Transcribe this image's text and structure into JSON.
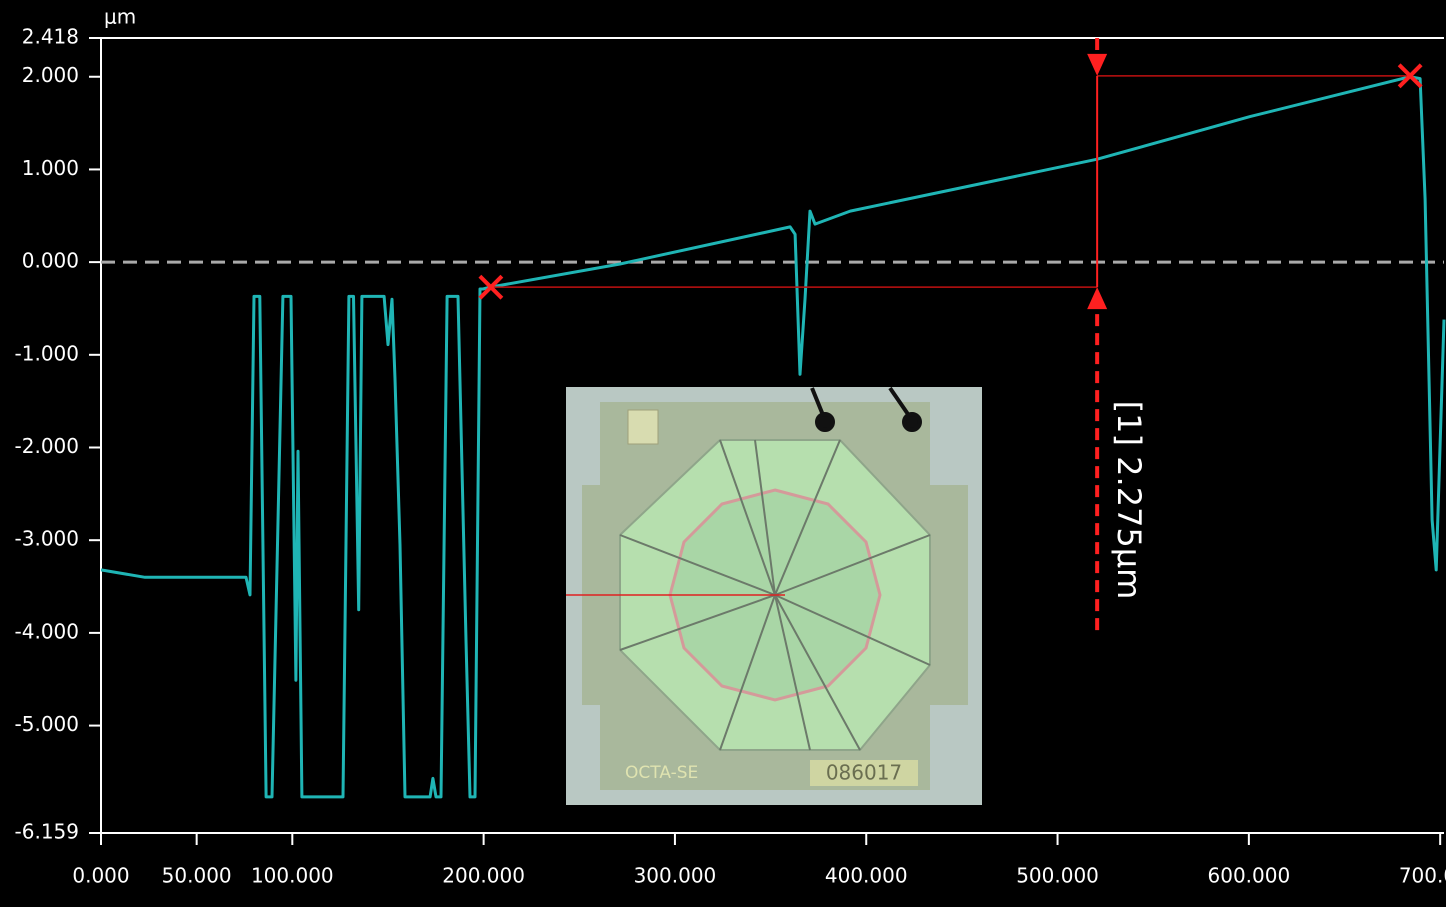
{
  "chart_data": {
    "type": "line",
    "y_label": "μm",
    "xlim": [
      0,
      702
    ],
    "ylim": [
      -6.159,
      2.418
    ],
    "xticks": [
      {
        "value": 0,
        "label": "0.000"
      },
      {
        "value": 50,
        "label": "50.000"
      },
      {
        "value": 100,
        "label": "100.000"
      },
      {
        "value": 200,
        "label": "200.000"
      },
      {
        "value": 300,
        "label": "300.000"
      },
      {
        "value": 400,
        "label": "400.000"
      },
      {
        "value": 500,
        "label": "500.000"
      },
      {
        "value": 600,
        "label": "600.000"
      },
      {
        "value": 700,
        "label": "700.000"
      }
    ],
    "yticks": [
      {
        "value": 2.418,
        "label": "2.418"
      },
      {
        "value": 2,
        "label": "2.000"
      },
      {
        "value": 1,
        "label": "1.000"
      },
      {
        "value": 0,
        "label": "0.000"
      },
      {
        "value": -1,
        "label": "-1.000"
      },
      {
        "value": -2,
        "label": "-2.000"
      },
      {
        "value": -3,
        "label": "-3.000"
      },
      {
        "value": -4,
        "label": "-4.000"
      },
      {
        "value": -5,
        "label": "-5.000"
      },
      {
        "value": -6.159,
        "label": "-6.159"
      }
    ],
    "zero_line": true,
    "x": [
      0,
      23,
      75.8,
      77.9,
      80,
      83,
      86.3,
      89.4,
      95.1,
      99.3,
      101.9,
      103,
      105,
      126.5,
      129.6,
      132,
      134.7,
      136.4,
      140.6,
      148,
      150,
      152.1,
      153.7,
      156.3,
      158.9,
      172,
      173.5,
      175.1,
      177.7,
      180.9,
      186.6,
      190.8,
      192.9,
      195.5,
      198.1,
      199.7,
      203.3,
      271.3,
      360.2,
      362.8,
      365.4,
      368,
      370.6,
      373.2,
      391.6,
      520.7,
      600.6,
      684.3,
      689.5,
      692.1,
      695.8,
      697.9,
      702
    ],
    "series": [
      {
        "color": "#1fb5b5",
        "values": [
          -3.32,
          -3.4,
          -3.4,
          -3.59,
          -0.37,
          -0.37,
          -5.77,
          -5.77,
          -0.37,
          -0.37,
          -4.51,
          -2.04,
          -5.77,
          -5.77,
          -0.37,
          -0.37,
          -3.75,
          -0.37,
          -0.37,
          -0.37,
          -0.89,
          -0.4,
          -1.26,
          -3.05,
          -5.77,
          -5.77,
          -5.57,
          -5.77,
          -5.77,
          -0.37,
          -0.37,
          -4.08,
          -5.77,
          -5.77,
          -0.29,
          -0.29,
          -0.27,
          -0.02,
          0.38,
          0.3,
          -1.21,
          -0.4,
          0.55,
          0.41,
          0.55,
          1.11,
          1.57,
          2.0,
          1.98,
          0.68,
          -2.78,
          -3.32,
          -0.62
        ]
      }
    ],
    "markers": {
      "color": "#ff2020",
      "x": [
        203.8,
        684.3
      ],
      "y": [
        -0.27,
        2.01
      ]
    },
    "measurement": {
      "label": "[1] 2.275μm",
      "x": 520.7
    },
    "inset_labels": [
      "OCTA-SE",
      "086017"
    ]
  }
}
